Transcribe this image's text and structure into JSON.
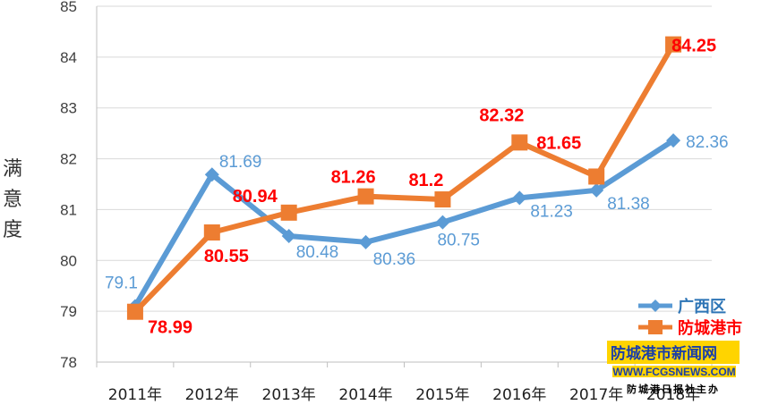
{
  "chart_data": {
    "type": "line",
    "title": "",
    "ylabel": "满意度",
    "xlabel": "",
    "categories": [
      "2011年",
      "2012年",
      "2013年",
      "2014年",
      "2015年",
      "2016年",
      "2017年",
      "2018年"
    ],
    "ylim": [
      78,
      85
    ],
    "yticks": [
      "78",
      "79",
      "80",
      "81",
      "82",
      "83",
      "84",
      "85"
    ],
    "grid": true,
    "legend_position": "bottom-right",
    "series": [
      {
        "name": "广西区",
        "color": "#5b9bd5",
        "marker": "diamond",
        "values": [
          79.1,
          81.69,
          80.48,
          80.36,
          80.75,
          81.23,
          81.38,
          82.36
        ],
        "labels": [
          "79.1",
          "81.69",
          "80.48",
          "80.36",
          "80.75",
          "81.23",
          "81.38",
          "82.36"
        ]
      },
      {
        "name": "防城港市",
        "color": "#ed7d31",
        "marker": "square",
        "values": [
          78.99,
          80.55,
          80.94,
          81.26,
          81.2,
          82.32,
          81.65,
          84.25
        ],
        "labels": [
          "78.99",
          "80.55",
          "80.94",
          "81.26",
          "81.2",
          "82.32",
          "81.65",
          "84.25"
        ]
      }
    ]
  },
  "watermark": {
    "line1": "防城港市新闻网",
    "line2": "WWW.FCGSNEWS.COM",
    "line3": "防城港日报社主办"
  }
}
